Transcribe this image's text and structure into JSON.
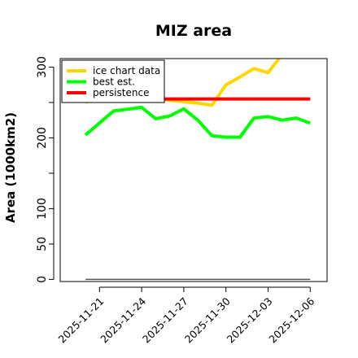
{
  "chart_data": {
    "type": "line",
    "title": "MIZ area",
    "ylabel": "Area (1000km2)",
    "xlabel": "",
    "ylim": [
      -3,
      312
    ],
    "xlim": [
      -2.8,
      16.2
    ],
    "grid": false,
    "legend_position": "top-left",
    "y_ticks": [
      0,
      50,
      100,
      200,
      300
    ],
    "y_minor_ticks": [
      150,
      250
    ],
    "x_ticks": [
      {
        "x": 0,
        "label": "2025-11-21"
      },
      {
        "x": 3,
        "label": "2025-11-24"
      },
      {
        "x": 6,
        "label": "2025-11-27"
      },
      {
        "x": 9,
        "label": "2025-11-30"
      },
      {
        "x": 12,
        "label": "2025-12-03"
      },
      {
        "x": 15,
        "label": "2025-12-06"
      }
    ],
    "series": [
      {
        "name": "ice chart data",
        "color": "#ffd700",
        "points": [
          [
            -1,
            250
          ],
          [
            1,
            265
          ],
          [
            3,
            258
          ],
          [
            5,
            253
          ],
          [
            7,
            249
          ],
          [
            8,
            246
          ],
          [
            9,
            275
          ],
          [
            10,
            286
          ],
          [
            11,
            298
          ],
          [
            12,
            292
          ],
          [
            13,
            318
          ]
        ]
      },
      {
        "name": "best est.",
        "color": "#00ff00",
        "points": [
          [
            -1,
            204
          ],
          [
            1,
            238
          ],
          [
            3,
            243
          ],
          [
            4,
            227
          ],
          [
            5,
            231
          ],
          [
            6,
            241
          ],
          [
            7,
            225
          ],
          [
            8,
            203
          ],
          [
            9,
            201
          ],
          [
            10,
            201
          ],
          [
            11,
            228
          ],
          [
            12,
            230
          ],
          [
            13,
            225
          ],
          [
            14,
            228
          ],
          [
            15,
            221
          ]
        ]
      },
      {
        "name": "persistence",
        "color": "#ff0000",
        "points": [
          [
            3,
            255
          ],
          [
            15,
            255
          ]
        ]
      },
      {
        "name": "",
        "color": "#555555",
        "points": [
          [
            -1,
            0
          ],
          [
            15,
            0
          ]
        ]
      }
    ]
  }
}
